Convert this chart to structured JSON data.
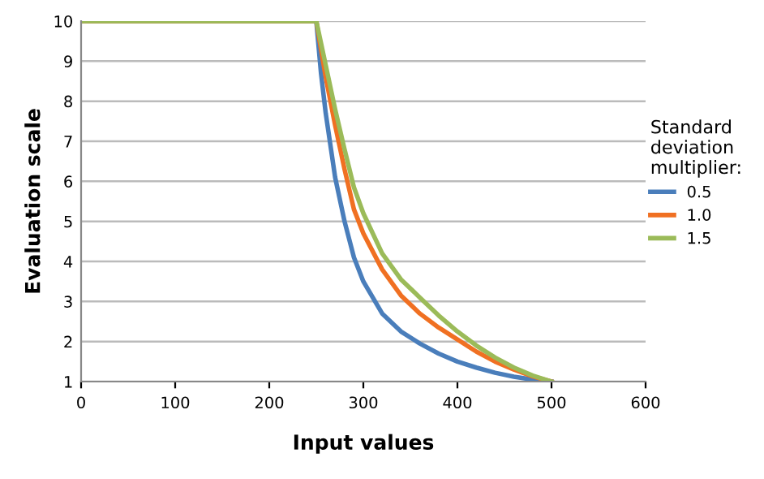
{
  "chart_data": {
    "type": "line",
    "xlabel": "Input values",
    "ylabel": "Evaluation scale",
    "legend_title": "Standard\ndeviation\nmultiplier:",
    "legend": "right",
    "grid": "y",
    "marker": "none",
    "line_style": "solid",
    "xlim": [
      0,
      600
    ],
    "xticks": [
      0,
      100,
      200,
      300,
      400,
      500,
      600
    ],
    "ylim": [
      1,
      10
    ],
    "yticks": [
      1,
      2,
      3,
      4,
      5,
      6,
      7,
      8,
      9,
      10
    ],
    "x": [
      0,
      250,
      255,
      260,
      270,
      280,
      290,
      300,
      320,
      340,
      360,
      380,
      400,
      420,
      440,
      460,
      480,
      500
    ],
    "series": [
      {
        "name": "0.5",
        "color": "#4a7ebb",
        "values": [
          10,
          10,
          8.7,
          7.7,
          6.1,
          5.0,
          4.1,
          3.5,
          2.7,
          2.25,
          1.95,
          1.7,
          1.5,
          1.35,
          1.22,
          1.12,
          1.05,
          1
        ]
      },
      {
        "name": "1.0",
        "color": "#f07022",
        "values": [
          10,
          10,
          9.3,
          8.6,
          7.4,
          6.3,
          5.3,
          4.7,
          3.8,
          3.15,
          2.7,
          2.35,
          2.05,
          1.75,
          1.5,
          1.3,
          1.13,
          1
        ]
      },
      {
        "name": "1.5",
        "color": "#9bbb59",
        "values": [
          10,
          10,
          9.45,
          8.9,
          7.8,
          6.8,
          5.85,
          5.2,
          4.2,
          3.55,
          3.1,
          2.65,
          2.25,
          1.9,
          1.6,
          1.35,
          1.15,
          1
        ]
      }
    ]
  }
}
